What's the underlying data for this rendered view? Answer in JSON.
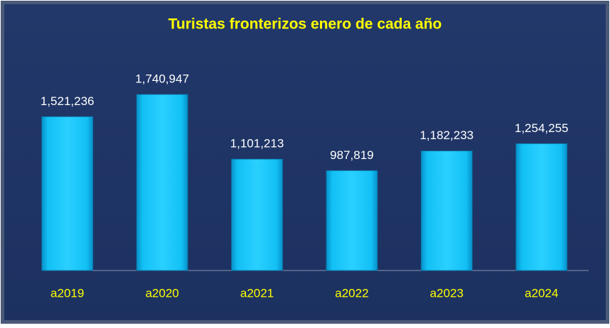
{
  "chart_data": {
    "type": "bar",
    "title": "Turistas fronterizos enero de cada año",
    "categories": [
      "a2019",
      "a2020",
      "a2021",
      "a2022",
      "a2023",
      "a2024"
    ],
    "values": [
      1521236,
      1740947,
      1101213,
      987819,
      1182233,
      1254255
    ],
    "value_labels": [
      "1,521,236",
      "1,740,947",
      "1,101,213",
      "987,819",
      "1,182,233",
      "1,254,255"
    ],
    "color": "#00b0f0"
  }
}
